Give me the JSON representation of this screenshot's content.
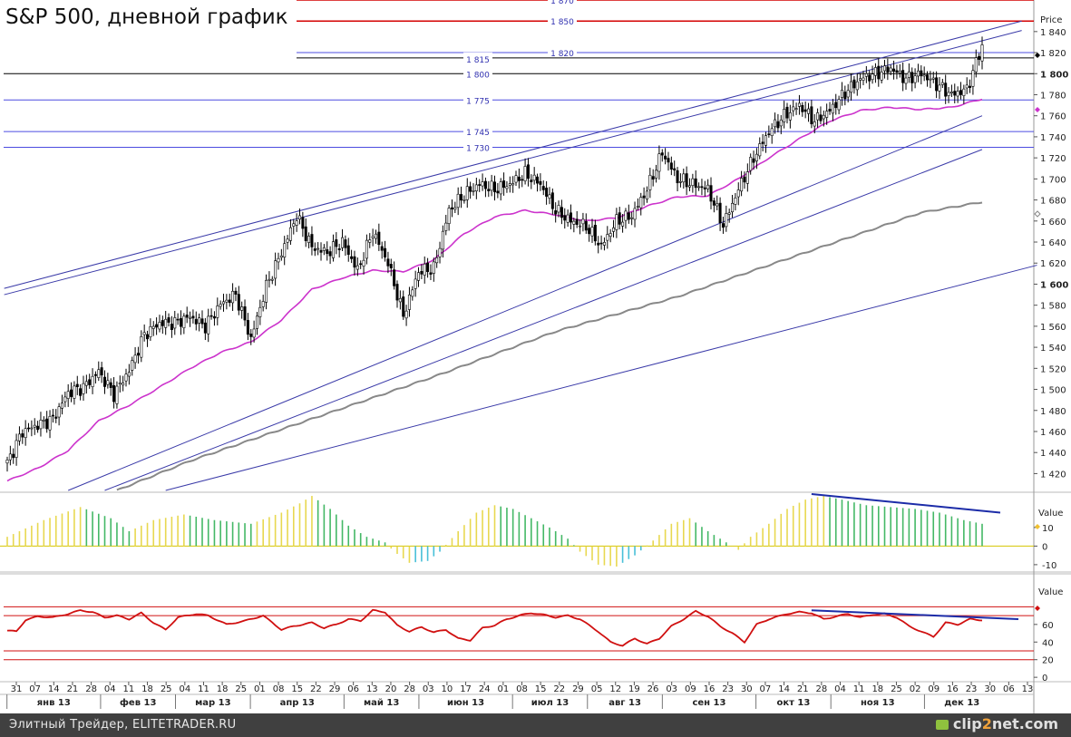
{
  "title": "S&P 500, дневной график",
  "footer": {
    "source": "Элитный Трейдер, ELITETRADER.RU",
    "watermark_pre": "clip",
    "watermark_num": "2",
    "watermark_post": "net.com"
  },
  "colors": {
    "candle": "#000000",
    "ma_fast": "#cc33cc",
    "ma_slow": "#888888",
    "channel": "#3a3aa8",
    "level_red": "#d40000",
    "level_blue": "#4c4ce0",
    "level_black": "#000000",
    "osc_red": "#d01010",
    "hist_up": "#e8d850",
    "hist_green": "#44b866",
    "hist_cyan": "#48c0d8",
    "divergence": "#1c2ca8"
  },
  "chart_data": [
    {
      "panel": "price",
      "type": "candlestick",
      "title": "S&P 500, дневной график",
      "ylabel": "Price",
      "ylim": [
        1404,
        1870
      ],
      "yticks": [
        "1 420",
        "1 440",
        "1 460",
        "1 480",
        "1 500",
        "1 520",
        "1 540",
        "1 560",
        "1 580",
        "1 600",
        "1 620",
        "1 640",
        "1 660",
        "1 680",
        "1 700",
        "1 720",
        "1 740",
        "1 760",
        "1 780",
        "1 800",
        "1 820",
        "1 840"
      ],
      "yticks_bold": [
        "1 600",
        "1 800"
      ],
      "levels": [
        {
          "value": 1870,
          "label": "1 870",
          "color": "level_red"
        },
        {
          "value": 1850,
          "label": "1 850",
          "color": "level_red"
        },
        {
          "value": 1820,
          "label": "1 820",
          "color": "level_blue"
        },
        {
          "value": 1815,
          "label": "1 815",
          "color": "level_black"
        },
        {
          "value": 1800,
          "label": "1 800",
          "color": "level_black"
        },
        {
          "value": 1775,
          "label": "1 775",
          "color": "level_blue"
        },
        {
          "value": 1745,
          "label": "1 745",
          "color": "level_blue"
        },
        {
          "value": 1730,
          "label": "1 730",
          "color": "level_blue"
        }
      ],
      "close_anchors": [
        [
          0,
          1430
        ],
        [
          5,
          1460
        ],
        [
          10,
          1466
        ],
        [
          15,
          1472
        ],
        [
          20,
          1497
        ],
        [
          25,
          1502
        ],
        [
          30,
          1517
        ],
        [
          35,
          1495
        ],
        [
          40,
          1518
        ],
        [
          45,
          1552
        ],
        [
          50,
          1563
        ],
        [
          55,
          1563
        ],
        [
          60,
          1569
        ],
        [
          65,
          1560
        ],
        [
          70,
          1581
        ],
        [
          75,
          1590
        ],
        [
          80,
          1548
        ],
        [
          85,
          1598
        ],
        [
          90,
          1630
        ],
        [
          95,
          1665
        ],
        [
          100,
          1635
        ],
        [
          105,
          1630
        ],
        [
          110,
          1640
        ],
        [
          115,
          1613
        ],
        [
          120,
          1650
        ],
        [
          125,
          1620
        ],
        [
          130,
          1570
        ],
        [
          135,
          1612
        ],
        [
          140,
          1615
        ],
        [
          145,
          1670
        ],
        [
          150,
          1685
        ],
        [
          155,
          1695
        ],
        [
          160,
          1690
        ],
        [
          165,
          1695
        ],
        [
          170,
          1705
        ],
        [
          175,
          1695
        ],
        [
          180,
          1670
        ],
        [
          185,
          1660
        ],
        [
          190,
          1655
        ],
        [
          195,
          1636
        ],
        [
          200,
          1660
        ],
        [
          205,
          1665
        ],
        [
          210,
          1690
        ],
        [
          215,
          1725
        ],
        [
          220,
          1700
        ],
        [
          225,
          1695
        ],
        [
          230,
          1690
        ],
        [
          235,
          1656
        ],
        [
          240,
          1690
        ],
        [
          245,
          1720
        ],
        [
          250,
          1745
        ],
        [
          255,
          1760
        ],
        [
          260,
          1770
        ],
        [
          265,
          1755
        ],
        [
          270,
          1765
        ],
        [
          275,
          1782
        ],
        [
          280,
          1795
        ],
        [
          285,
          1800
        ],
        [
          290,
          1805
        ],
        [
          295,
          1795
        ],
        [
          300,
          1800
        ],
        [
          305,
          1790
        ],
        [
          310,
          1780
        ],
        [
          315,
          1785
        ],
        [
          318,
          1810
        ],
        [
          320,
          1827
        ]
      ],
      "ma_fast_anchors": [
        [
          0,
          1413
        ],
        [
          10,
          1425
        ],
        [
          20,
          1442
        ],
        [
          30,
          1470
        ],
        [
          40,
          1485
        ],
        [
          50,
          1502
        ],
        [
          60,
          1520
        ],
        [
          70,
          1535
        ],
        [
          80,
          1545
        ],
        [
          90,
          1566
        ],
        [
          100,
          1595
        ],
        [
          110,
          1606
        ],
        [
          120,
          1613
        ],
        [
          130,
          1612
        ],
        [
          140,
          1623
        ],
        [
          150,
          1648
        ],
        [
          160,
          1664
        ],
        [
          170,
          1670
        ],
        [
          180,
          1666
        ],
        [
          190,
          1660
        ],
        [
          200,
          1663
        ],
        [
          210,
          1674
        ],
        [
          220,
          1683
        ],
        [
          230,
          1684
        ],
        [
          240,
          1700
        ],
        [
          250,
          1720
        ],
        [
          260,
          1738
        ],
        [
          270,
          1755
        ],
        [
          280,
          1765
        ],
        [
          290,
          1768
        ],
        [
          300,
          1766
        ],
        [
          310,
          1768
        ],
        [
          320,
          1776
        ]
      ],
      "ma_slow_anchors": [
        [
          36,
          1404
        ],
        [
          60,
          1432
        ],
        [
          100,
          1472
        ],
        [
          140,
          1512
        ],
        [
          180,
          1555
        ],
        [
          220,
          1588
        ],
        [
          260,
          1628
        ],
        [
          300,
          1668
        ],
        [
          320,
          1678
        ]
      ],
      "channels": [
        {
          "p1": [
            -1,
            1596
          ],
          "p2": [
            333,
            1850
          ]
        },
        {
          "p1": [
            -1,
            1590
          ],
          "p2": [
            333,
            1841
          ]
        },
        {
          "p1": [
            20,
            1404
          ],
          "p2": [
            320,
            1760
          ]
        },
        {
          "p1": [
            32,
            1404
          ],
          "p2": [
            320,
            1728
          ]
        },
        {
          "p1": [
            52,
            1404
          ],
          "p2": [
            338,
            1618
          ]
        }
      ]
    },
    {
      "panel": "histogram",
      "type": "bar",
      "ylabel": "Value",
      "ylim": [
        -12,
        28
      ],
      "yticks": [
        "10",
        "0",
        "-10"
      ],
      "value_anchors": [
        [
          0,
          5
        ],
        [
          12,
          14
        ],
        [
          24,
          21
        ],
        [
          34,
          15
        ],
        [
          40,
          8
        ],
        [
          48,
          14
        ],
        [
          58,
          17
        ],
        [
          68,
          14
        ],
        [
          80,
          12
        ],
        [
          90,
          18
        ],
        [
          96,
          23
        ],
        [
          100,
          27
        ],
        [
          106,
          20
        ],
        [
          112,
          11
        ],
        [
          118,
          5
        ],
        [
          124,
          2
        ],
        [
          127,
          -3
        ],
        [
          132,
          -9
        ],
        [
          138,
          -8
        ],
        [
          142,
          -3
        ],
        [
          148,
          8
        ],
        [
          154,
          18
        ],
        [
          160,
          22
        ],
        [
          166,
          20
        ],
        [
          172,
          15
        ],
        [
          178,
          10
        ],
        [
          184,
          4
        ],
        [
          188,
          -3
        ],
        [
          194,
          -10
        ],
        [
          200,
          -11
        ],
        [
          206,
          -5
        ],
        [
          212,
          3
        ],
        [
          218,
          12
        ],
        [
          224,
          15
        ],
        [
          230,
          8
        ],
        [
          236,
          2
        ],
        [
          240,
          -2
        ],
        [
          244,
          5
        ],
        [
          250,
          12
        ],
        [
          256,
          20
        ],
        [
          262,
          25
        ],
        [
          268,
          27
        ],
        [
          274,
          25
        ],
        [
          282,
          22
        ],
        [
          290,
          21
        ],
        [
          298,
          20
        ],
        [
          306,
          18
        ],
        [
          314,
          14
        ],
        [
          320,
          12
        ]
      ],
      "divergence": {
        "p1": [
          264,
          28
        ],
        "p2": [
          320,
          18
        ]
      }
    },
    {
      "panel": "oscillator",
      "type": "line",
      "ylabel": "Value",
      "ylim": [
        -5,
        102
      ],
      "yticks": [
        "60",
        "40",
        "20",
        "0"
      ],
      "levels": [
        80,
        70,
        30,
        20
      ],
      "value_anchors": [
        [
          0,
          53
        ],
        [
          3,
          52
        ],
        [
          6,
          65
        ],
        [
          10,
          69
        ],
        [
          15,
          68
        ],
        [
          20,
          72
        ],
        [
          24,
          76
        ],
        [
          28,
          74
        ],
        [
          32,
          68
        ],
        [
          36,
          70
        ],
        [
          40,
          66
        ],
        [
          44,
          73
        ],
        [
          48,
          62
        ],
        [
          52,
          54
        ],
        [
          56,
          68
        ],
        [
          62,
          72
        ],
        [
          66,
          70
        ],
        [
          72,
          60
        ],
        [
          78,
          64
        ],
        [
          84,
          70
        ],
        [
          90,
          54
        ],
        [
          94,
          58
        ],
        [
          100,
          62
        ],
        [
          104,
          56
        ],
        [
          108,
          60
        ],
        [
          112,
          66
        ],
        [
          116,
          64
        ],
        [
          120,
          76
        ],
        [
          124,
          74
        ],
        [
          128,
          59
        ],
        [
          132,
          52
        ],
        [
          136,
          57
        ],
        [
          140,
          51
        ],
        [
          144,
          54
        ],
        [
          148,
          44
        ],
        [
          152,
          42
        ],
        [
          156,
          56
        ],
        [
          160,
          59
        ],
        [
          164,
          66
        ],
        [
          168,
          70
        ],
        [
          172,
          73
        ],
        [
          176,
          71
        ],
        [
          180,
          68
        ],
        [
          184,
          70
        ],
        [
          188,
          66
        ],
        [
          194,
          52
        ],
        [
          198,
          40
        ],
        [
          202,
          36
        ],
        [
          206,
          44
        ],
        [
          210,
          38
        ],
        [
          214,
          44
        ],
        [
          218,
          58
        ],
        [
          222,
          66
        ],
        [
          226,
          75
        ],
        [
          230,
          69
        ],
        [
          234,
          58
        ],
        [
          238,
          50
        ],
        [
          242,
          40
        ],
        [
          246,
          60
        ],
        [
          250,
          66
        ],
        [
          256,
          72
        ],
        [
          260,
          74
        ],
        [
          264,
          73
        ],
        [
          268,
          66
        ],
        [
          272,
          69
        ],
        [
          276,
          72
        ],
        [
          280,
          68
        ],
        [
          284,
          71
        ],
        [
          288,
          72
        ],
        [
          292,
          68
        ],
        [
          296,
          58
        ],
        [
          300,
          52
        ],
        [
          304,
          46
        ],
        [
          308,
          62
        ],
        [
          312,
          60
        ],
        [
          316,
          66
        ],
        [
          320,
          65
        ]
      ],
      "divergence": {
        "p1": [
          264,
          76
        ],
        "p2": [
          320,
          66
        ]
      }
    }
  ],
  "x_axis": {
    "days": [
      "31",
      "07",
      "14",
      "21",
      "28",
      "04",
      "11",
      "18",
      "25",
      "04",
      "11",
      "18",
      "25",
      "01",
      "08",
      "15",
      "22",
      "29",
      "06",
      "13",
      "20",
      "28",
      "03",
      "10",
      "17",
      "24",
      "01",
      "08",
      "15",
      "22",
      "29",
      "05",
      "12",
      "19",
      "26",
      "03",
      "09",
      "16",
      "23",
      "30",
      "07",
      "14",
      "21",
      "28",
      "04",
      "11",
      "18",
      "25",
      "02",
      "09",
      "16",
      "23",
      "30",
      "06",
      "13"
    ],
    "months": [
      "янв 13",
      "фев 13",
      "мар 13",
      "апр 13",
      "май 13",
      "июн 13",
      "июл 13",
      "авг 13",
      "сен 13",
      "окт 13",
      "ноя 13",
      "дек 13"
    ]
  }
}
